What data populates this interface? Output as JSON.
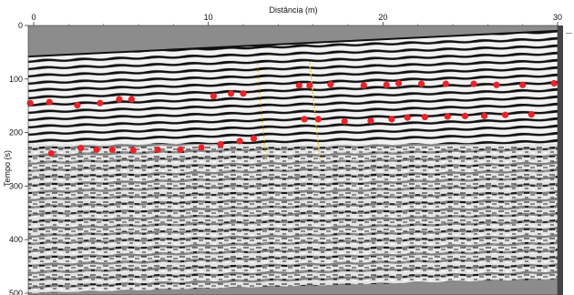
{
  "chart_data": {
    "type": "scatter",
    "title": "",
    "xlabel": "Distância (m)",
    "ylabel": "Tempo (s)",
    "xlim": [
      0,
      30
    ],
    "ylim": [
      500,
      0
    ],
    "y_inverted": true,
    "x_ticks": [
      "0",
      "10",
      "20",
      "30"
    ],
    "y_ticks": [
      "0",
      "100",
      "200",
      "300",
      "400",
      "500"
    ],
    "background": "ground-penetrating radar section (black/white reflection bands)",
    "surface_line": {
      "x": [
        0,
        30
      ],
      "y": [
        58,
        10
      ]
    },
    "bottom_edge": {
      "x": [
        0,
        30
      ],
      "y": [
        500,
        474
      ]
    },
    "series": [
      {
        "marker": "red-dot",
        "color": "#e8232a",
        "x": [
          -0.2,
          0.9,
          2.5,
          3.8,
          4.9,
          5.6,
          10.3,
          11.3,
          12.0
        ],
        "y": [
          145,
          143,
          149,
          145,
          138,
          138,
          132,
          127,
          127
        ]
      },
      {
        "marker": "red-dot",
        "color": "#e8232a",
        "x": [
          15.2,
          15.8,
          17.0,
          18.9,
          20.2,
          20.9,
          22.2,
          23.6,
          25.2,
          26.5,
          28.0,
          29.8
        ],
        "y": [
          112,
          112,
          110,
          112,
          111,
          108,
          109,
          109,
          109,
          111,
          111,
          108
        ]
      },
      {
        "marker": "red-dot",
        "color": "#e8232a",
        "x": [
          1.0,
          2.7,
          3.6,
          4.5,
          5.7,
          7.1,
          8.4,
          9.6,
          10.7,
          11.8,
          12.6
        ],
        "y": [
          239,
          229,
          232,
          232,
          233,
          232,
          232,
          228,
          222,
          216,
          211
        ]
      },
      {
        "marker": "red-dot",
        "color": "#e8232a",
        "x": [
          15.5,
          16.3,
          17.8,
          19.3,
          20.5,
          21.4,
          22.4,
          23.7,
          24.7,
          25.8,
          27.0,
          28.5
        ],
        "y": [
          175,
          175,
          179,
          178,
          175,
          172,
          171,
          170,
          169,
          169,
          167,
          166
        ]
      }
    ],
    "annotations": [
      {
        "type": "dashed-line",
        "color": "#f0c020",
        "x": [
          12.8,
          13.3
        ],
        "y": [
          70,
          252
        ]
      },
      {
        "type": "dashed-line",
        "color": "#f0c020",
        "x": [
          15.8,
          16.4
        ],
        "y": [
          70,
          252
        ]
      }
    ],
    "grid": false,
    "legend": "none"
  }
}
